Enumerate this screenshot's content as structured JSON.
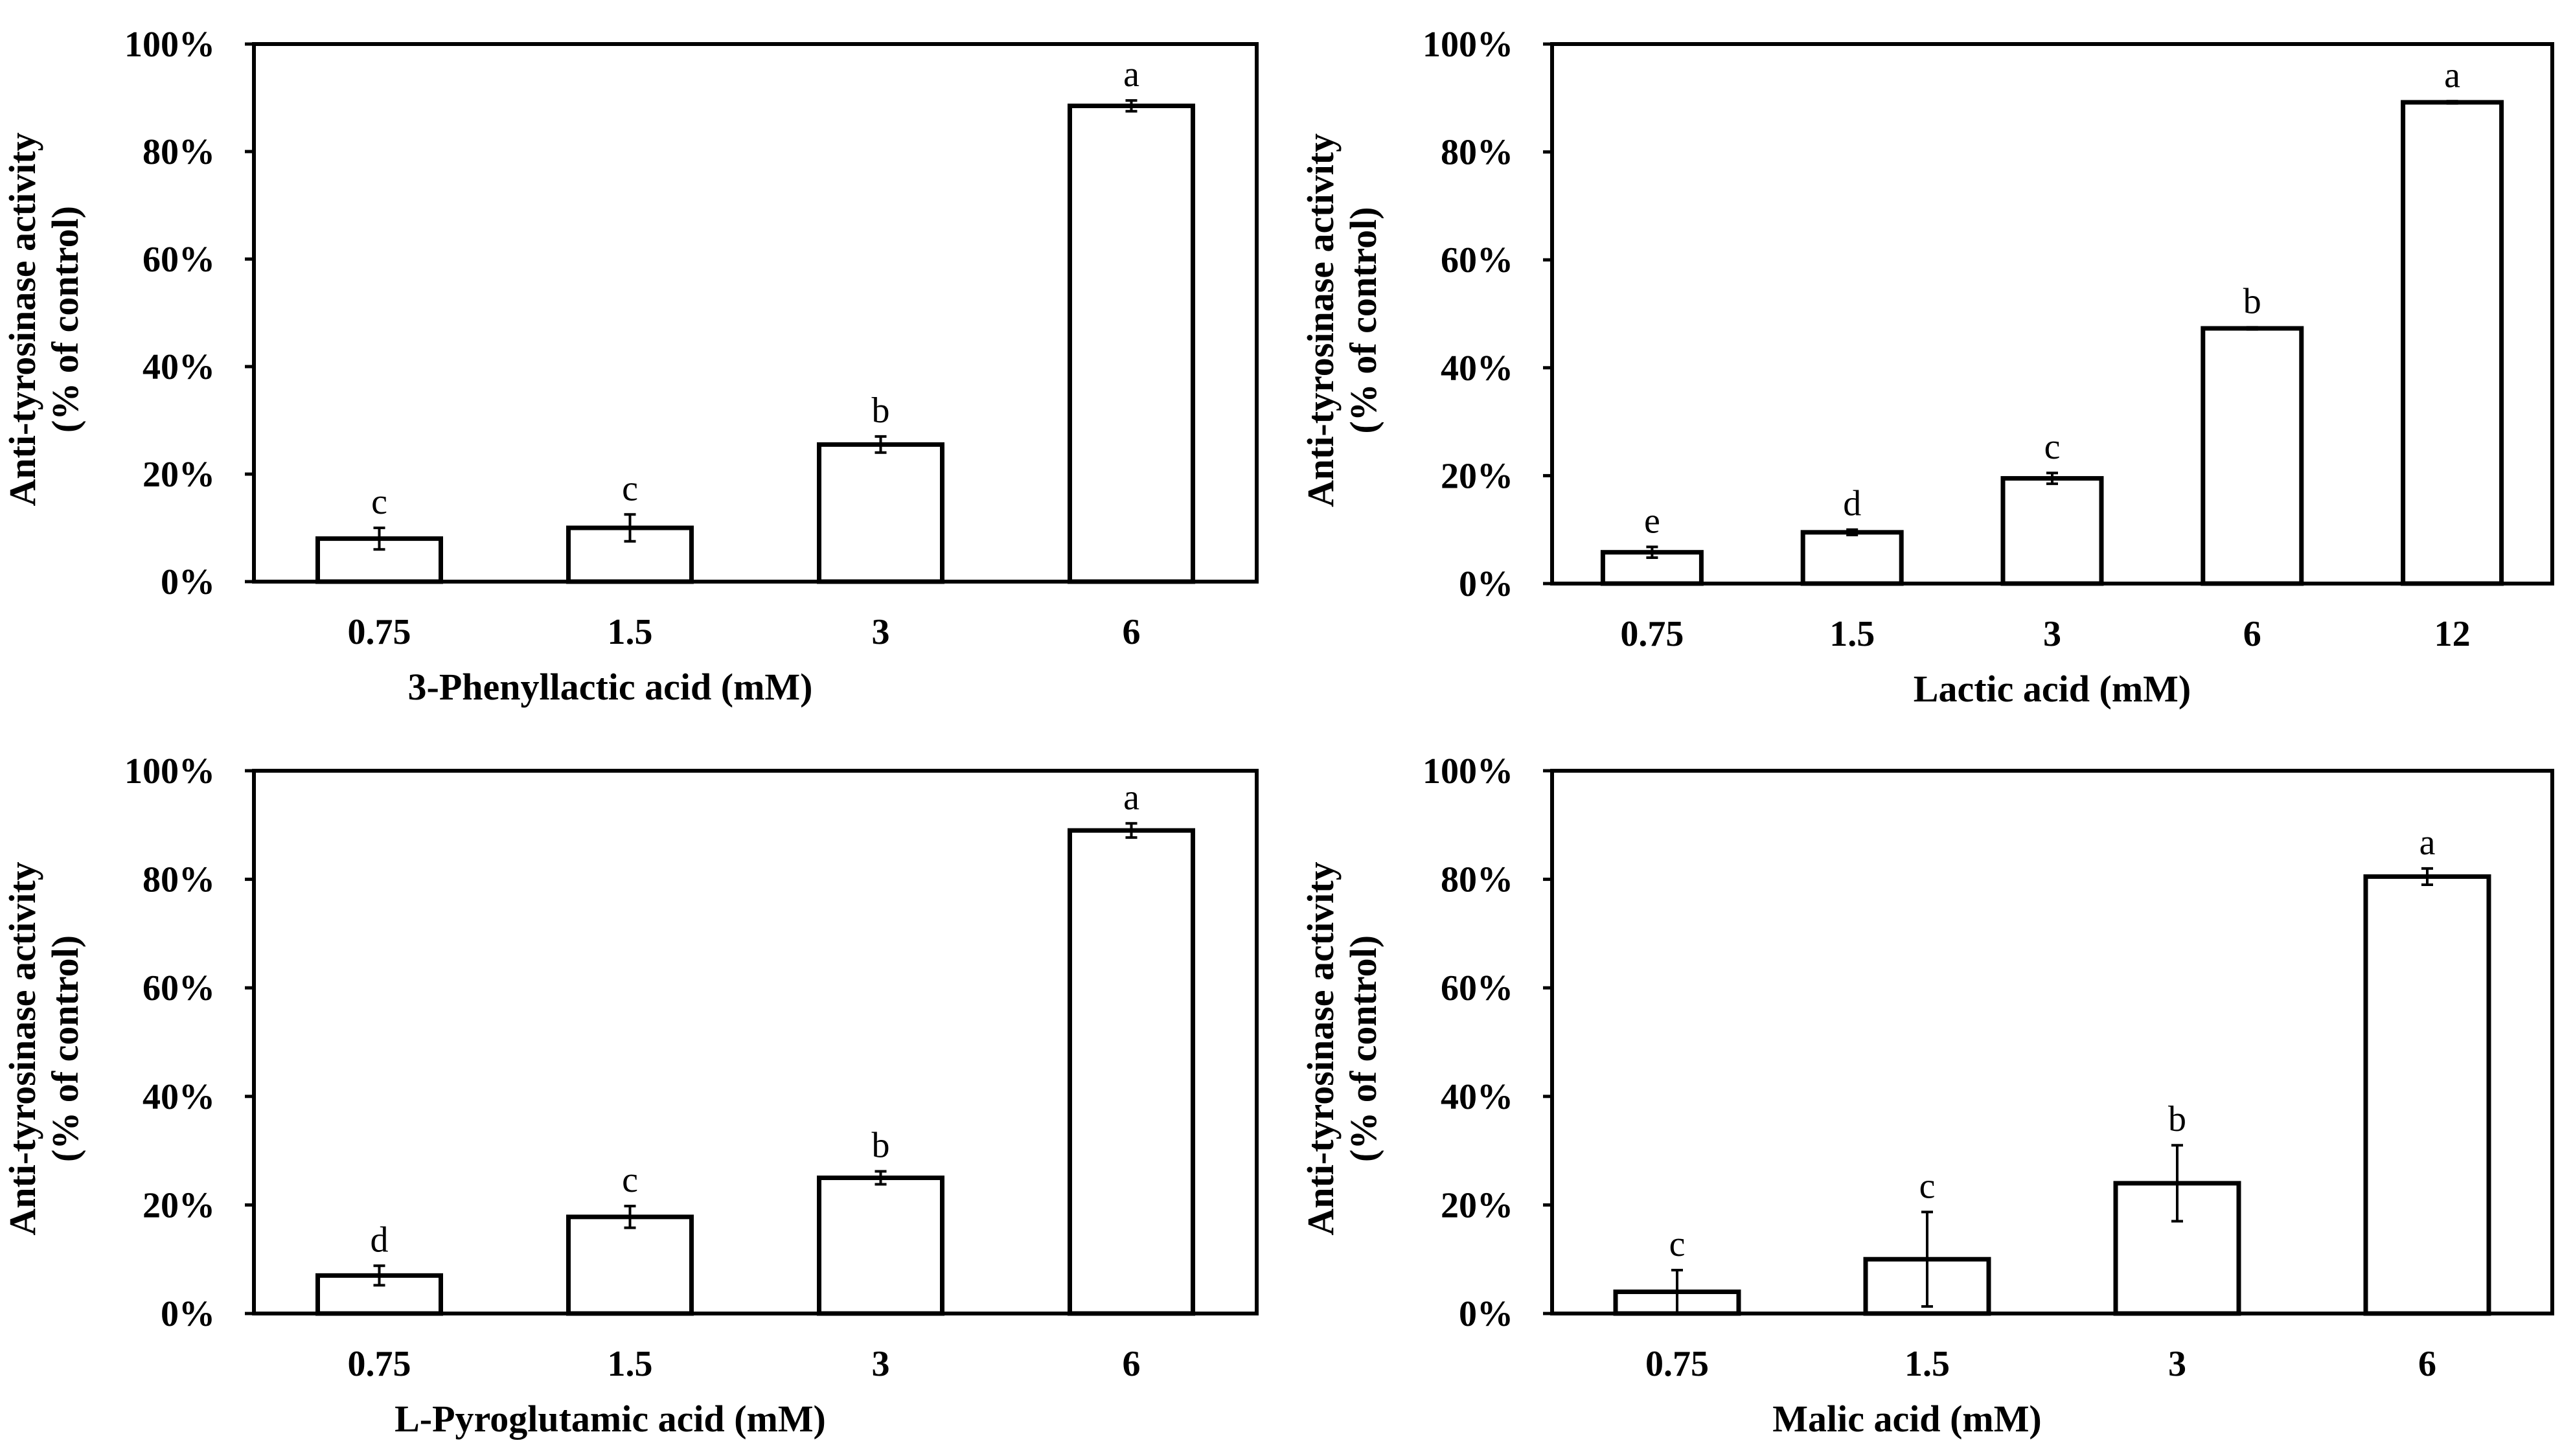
{
  "colors": {
    "bar_fill": "#ffffff",
    "stroke": "#000000",
    "background": "#ffffff"
  },
  "chart_data": [
    {
      "type": "bar",
      "title": "",
      "xlabel": "3-Phenyllactic acid (mM)",
      "ylabel": "Anti-tyrosinase  activity",
      "ylabel2": "(% of control)",
      "ylim": [
        0,
        100
      ],
      "yticks": [
        "0%",
        "20%",
        "40%",
        "60%",
        "80%",
        "100%"
      ],
      "categories": [
        "0.75",
        "1.5",
        "3",
        "6"
      ],
      "values": [
        8,
        10,
        25.5,
        88.5
      ],
      "errors": [
        2,
        2.5,
        1.5,
        1
      ],
      "letters": [
        "c",
        "c",
        "b",
        "a"
      ]
    },
    {
      "type": "bar",
      "title": "",
      "xlabel": "Lactic acid (mM)",
      "ylabel": "Anti-tyrosinase  activity",
      "ylabel2": "(% of control)",
      "ylim": [
        0,
        100
      ],
      "yticks": [
        "0%",
        "20%",
        "40%",
        "60%",
        "80%",
        "100%"
      ],
      "categories": [
        "0.75",
        "1.5",
        "3",
        "6",
        "12"
      ],
      "values": [
        5.8,
        9.5,
        19.5,
        47.3,
        89.2
      ],
      "errors": [
        1,
        0.5,
        1,
        0.2,
        0.2
      ],
      "letters": [
        "e",
        "d",
        "c",
        "b",
        "a"
      ]
    },
    {
      "type": "bar",
      "title": "",
      "xlabel": "L-Pyroglutamic  acid (mM)",
      "ylabel": "Anti-tyrosinase  activity",
      "ylabel2": "(% of control)",
      "ylim": [
        0,
        100
      ],
      "yticks": [
        "0%",
        "20%",
        "40%",
        "60%",
        "80%",
        "100%"
      ],
      "categories": [
        "0.75",
        "1.5",
        "3",
        "6"
      ],
      "values": [
        7,
        17.8,
        25,
        89
      ],
      "errors": [
        1.8,
        2,
        1.2,
        1.3
      ],
      "letters": [
        "d",
        "c",
        "b",
        "a"
      ]
    },
    {
      "type": "bar",
      "title": "",
      "xlabel": "Malic acid (mM)",
      "ylabel": "Anti-tyrosinase  activity",
      "ylabel2": "(% of control)",
      "ylim": [
        0,
        100
      ],
      "yticks": [
        "0%",
        "20%",
        "40%",
        "60%",
        "80%",
        "100%"
      ],
      "categories": [
        "0.75",
        "1.5",
        "3",
        "6"
      ],
      "values": [
        4,
        10,
        24,
        80.5
      ],
      "errors": [
        4,
        8.7,
        7,
        1.5
      ],
      "letters": [
        "c",
        "c",
        "b",
        "a"
      ]
    }
  ]
}
